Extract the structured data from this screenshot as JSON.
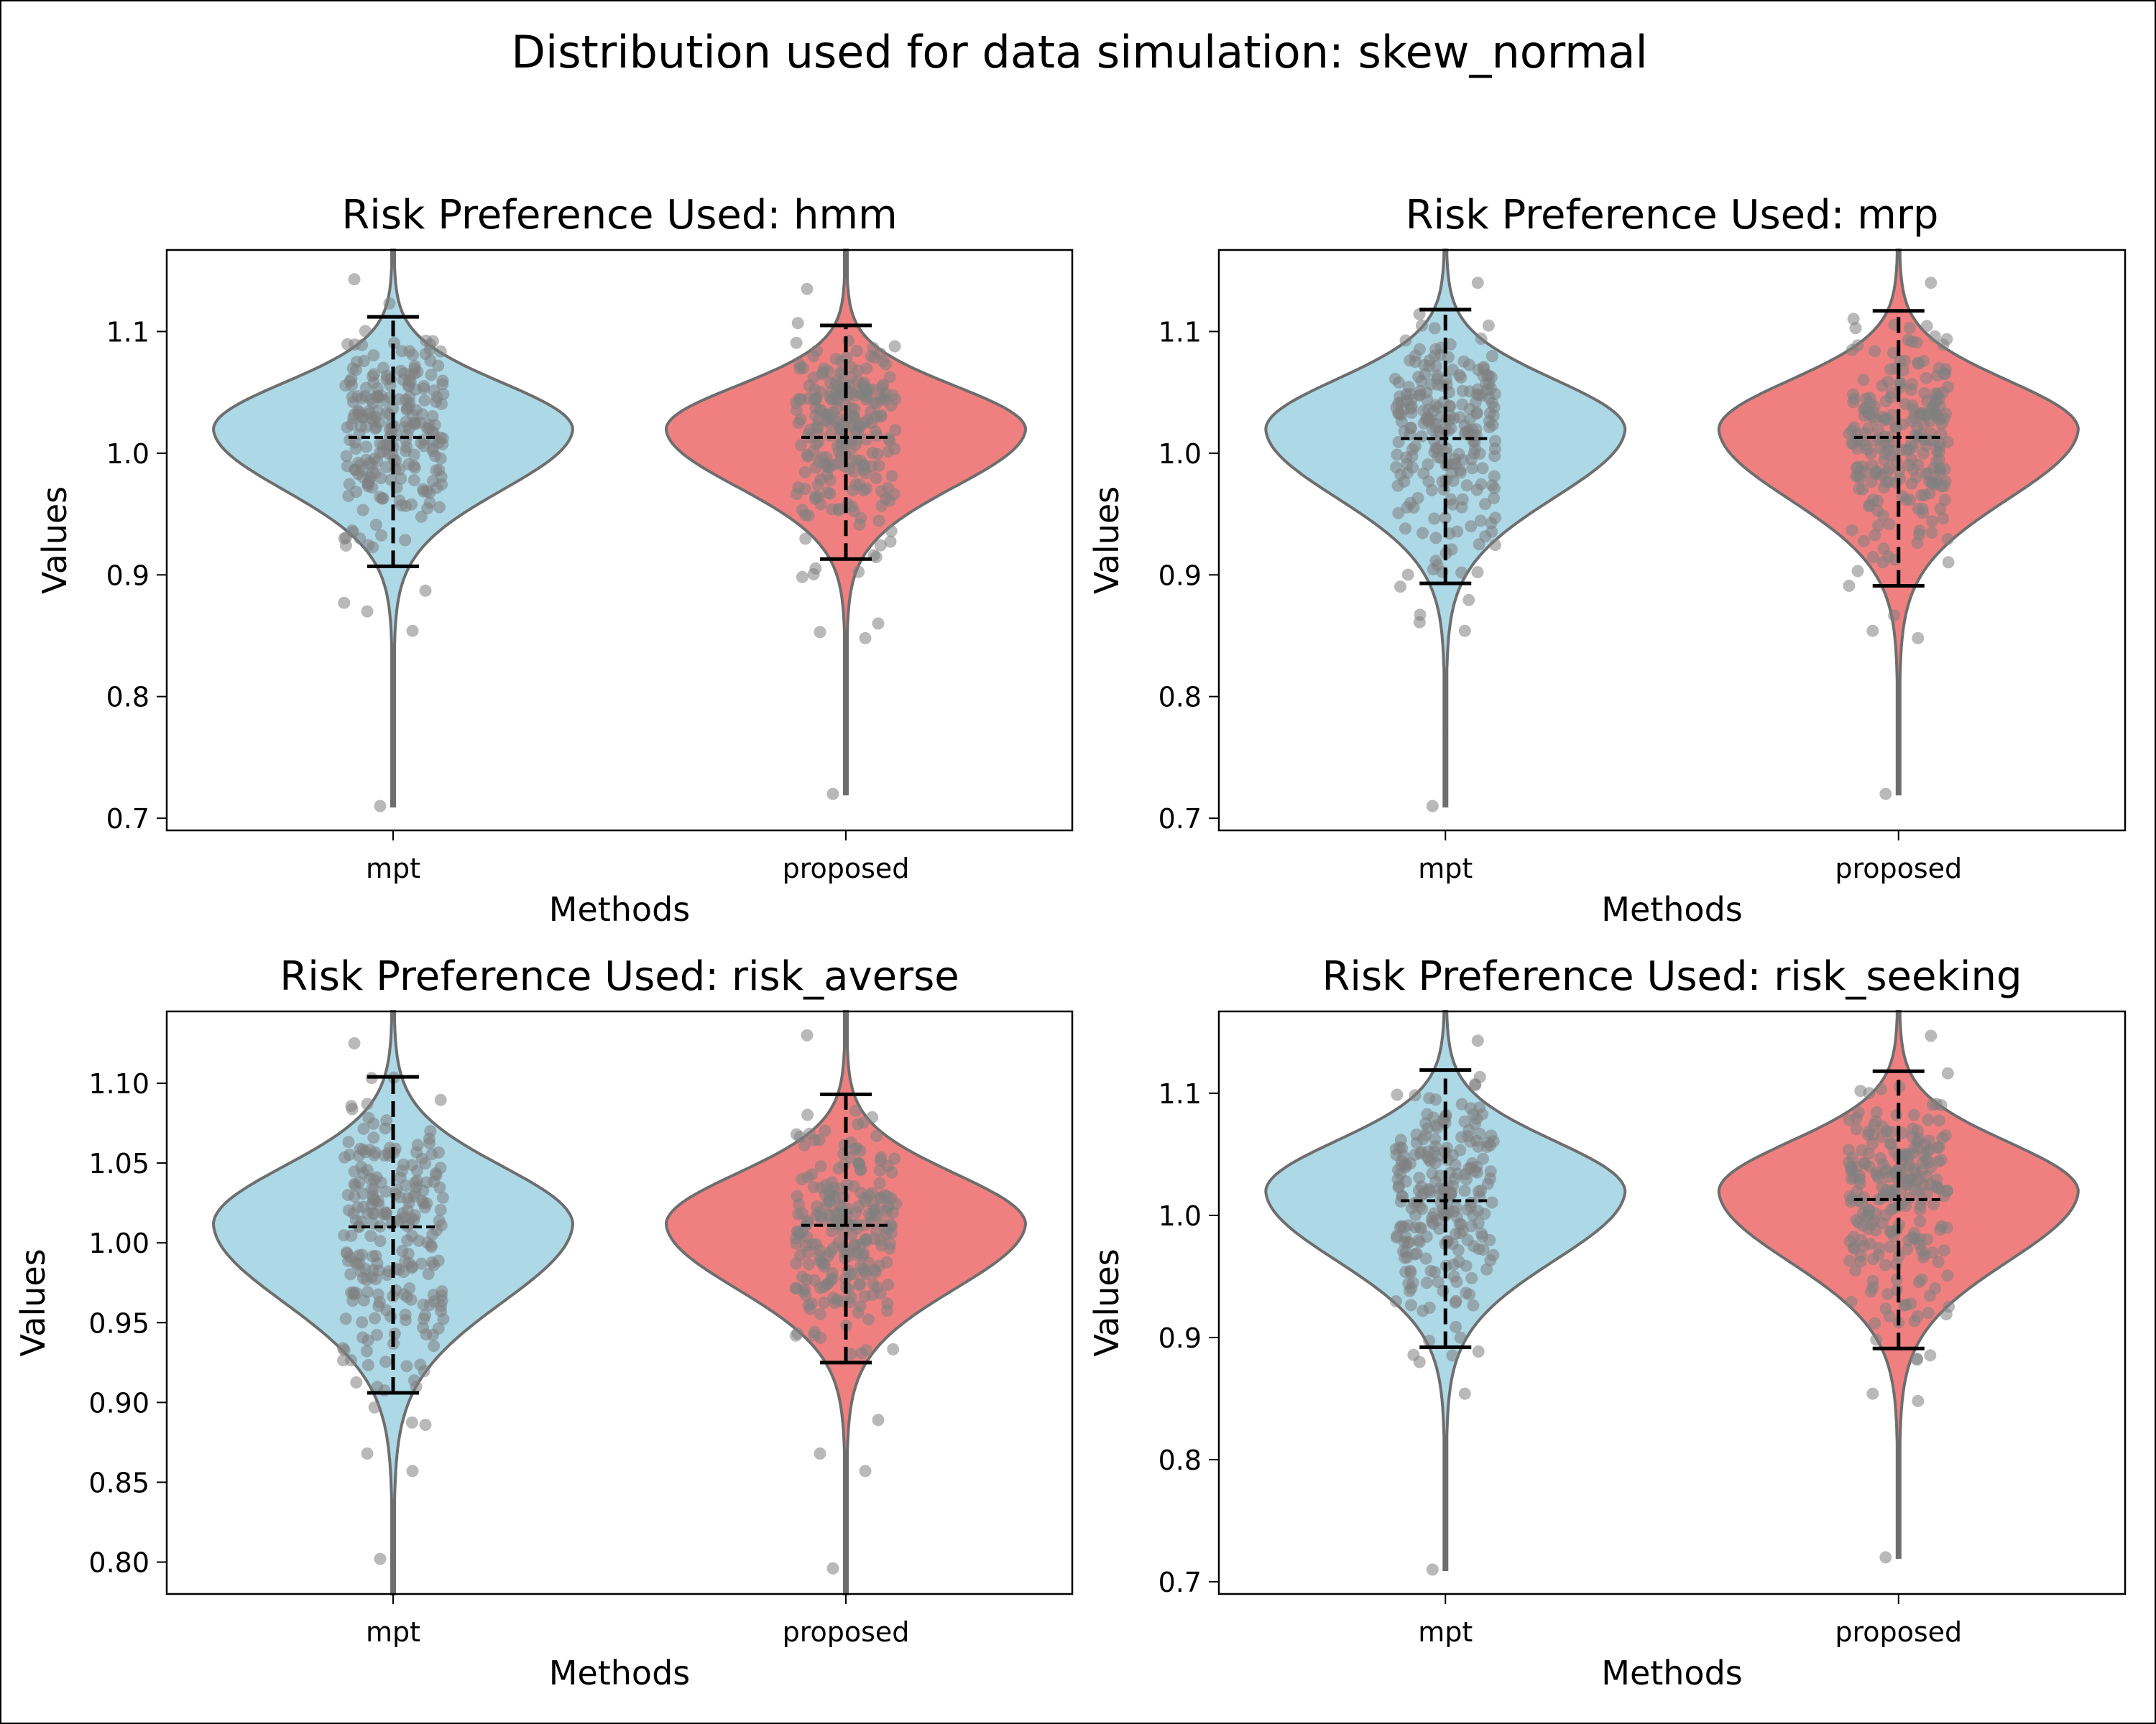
{
  "figure": {
    "suptitle": "Distribution used for data simulation: skew_normal"
  },
  "palette": {
    "mpt": "#add8e6",
    "proposed": "#f08080",
    "outline": "#6e6e6e",
    "points": "#808080",
    "whisker": "#000000"
  },
  "chart_data": [
    {
      "type": "violin",
      "title": "Risk Preference Used: hmm",
      "xlabel": "Methods",
      "ylabel": "Values",
      "categories": [
        "mpt",
        "proposed"
      ],
      "ylim": [
        0.69,
        1.167
      ],
      "yticks": [
        0.7,
        0.8,
        0.9,
        1.0,
        1.1
      ],
      "yticklabels": [
        "0.7",
        "0.8",
        "0.9",
        "1.0",
        "1.1"
      ],
      "series": [
        {
          "category": "mpt",
          "median": 1.013,
          "whisker_low": 0.907,
          "whisker_high": 1.112,
          "mode": 1.02,
          "min": 0.71,
          "max": 1.167,
          "outliers": [
            0.71,
            0.854,
            0.87,
            0.887,
            1.143
          ]
        },
        {
          "category": "proposed",
          "median": 1.013,
          "whisker_low": 0.913,
          "whisker_high": 1.105,
          "mode": 1.02,
          "min": 0.72,
          "max": 1.167,
          "outliers": [
            0.72,
            0.848,
            0.853,
            0.86,
            1.135
          ]
        }
      ]
    },
    {
      "type": "violin",
      "title": "Risk Preference Used: mrp",
      "xlabel": "Methods",
      "ylabel": "Values",
      "categories": [
        "mpt",
        "proposed"
      ],
      "ylim": [
        0.69,
        1.167
      ],
      "yticks": [
        0.7,
        0.8,
        0.9,
        1.0,
        1.1
      ],
      "yticklabels": [
        "0.7",
        "0.8",
        "0.9",
        "1.0",
        "1.1"
      ],
      "series": [
        {
          "category": "mpt",
          "median": 1.012,
          "whisker_low": 0.893,
          "whisker_high": 1.118,
          "mode": 1.02,
          "min": 0.71,
          "max": 1.167,
          "outliers": [
            0.71,
            0.854,
            0.861,
            1.14
          ]
        },
        {
          "category": "proposed",
          "median": 1.013,
          "whisker_low": 0.891,
          "whisker_high": 1.117,
          "mode": 1.02,
          "min": 0.72,
          "max": 1.167,
          "outliers": [
            0.72,
            0.848,
            0.854,
            1.14
          ]
        }
      ]
    },
    {
      "type": "violin",
      "title": "Risk Preference Used: risk_averse",
      "xlabel": "Methods",
      "ylabel": "Values",
      "categories": [
        "mpt",
        "proposed"
      ],
      "ylim": [
        0.78,
        1.145
      ],
      "yticks": [
        0.8,
        0.85,
        0.9,
        0.95,
        1.0,
        1.05,
        1.1
      ],
      "yticklabels": [
        "0.80",
        "0.85",
        "0.90",
        "0.95",
        "1.00",
        "1.05",
        "1.10"
      ],
      "series": [
        {
          "category": "mpt",
          "median": 1.01,
          "whisker_low": 0.906,
          "whisker_high": 1.104,
          "mode": 1.012,
          "min": 0.78,
          "max": 1.145,
          "outliers": [
            0.802,
            0.857,
            0.868,
            0.886,
            1.125
          ]
        },
        {
          "category": "proposed",
          "median": 1.011,
          "whisker_low": 0.925,
          "whisker_high": 1.093,
          "mode": 1.012,
          "min": 0.78,
          "max": 1.145,
          "outliers": [
            0.796,
            0.857,
            0.868,
            0.889,
            1.13
          ]
        }
      ]
    },
    {
      "type": "violin",
      "title": "Risk Preference Used: risk_seeking",
      "xlabel": "Methods",
      "ylabel": "Values",
      "categories": [
        "mpt",
        "proposed"
      ],
      "ylim": [
        0.69,
        1.167
      ],
      "yticks": [
        0.7,
        0.8,
        0.9,
        1.0,
        1.1
      ],
      "yticklabels": [
        "0.7",
        "0.8",
        "0.9",
        "1.0",
        "1.1"
      ],
      "series": [
        {
          "category": "mpt",
          "median": 1.012,
          "whisker_low": 0.892,
          "whisker_high": 1.119,
          "mode": 1.02,
          "min": 0.71,
          "max": 1.167,
          "outliers": [
            0.71,
            0.854,
            0.88,
            1.143
          ]
        },
        {
          "category": "proposed",
          "median": 1.013,
          "whisker_low": 0.891,
          "whisker_high": 1.118,
          "mode": 1.02,
          "min": 0.72,
          "max": 1.167,
          "outliers": [
            0.72,
            0.848,
            0.854,
            1.147
          ]
        }
      ]
    }
  ]
}
